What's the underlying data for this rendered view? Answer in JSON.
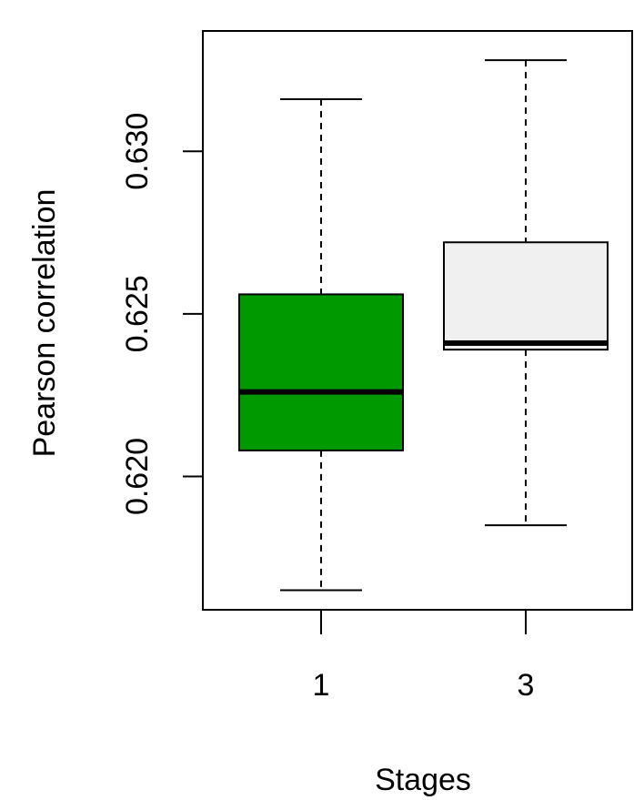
{
  "chart_data": {
    "type": "boxplot",
    "xlabel": "Stages",
    "ylabel": "Pearson correlation",
    "categories": [
      "1",
      "3"
    ],
    "yticks": [
      0.62,
      0.625,
      0.63
    ],
    "ytick_labels": [
      "0.620",
      "0.625",
      "0.630"
    ],
    "ylim": [
      0.6159,
      0.6337
    ],
    "grid": false,
    "boxes": [
      {
        "category": "1",
        "whisker_low": 0.6165,
        "q1": 0.6208,
        "median": 0.6226,
        "q3": 0.6256,
        "whisker_high": 0.6316,
        "fill": "#009900"
      },
      {
        "category": "3",
        "whisker_low": 0.6185,
        "q1": 0.6239,
        "median": 0.6241,
        "q3": 0.6272,
        "whisker_high": 0.6328,
        "fill": "#f0f0f0"
      }
    ]
  }
}
